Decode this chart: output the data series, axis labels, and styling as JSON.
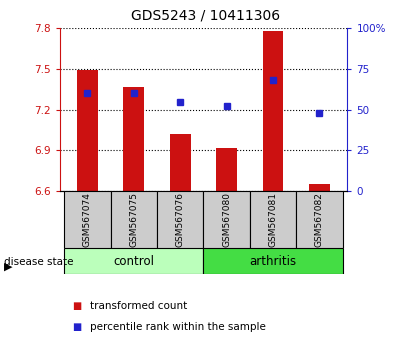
{
  "title": "GDS5243 / 10411306",
  "samples": [
    "GSM567074",
    "GSM567075",
    "GSM567076",
    "GSM567080",
    "GSM567081",
    "GSM567082"
  ],
  "bar_values": [
    7.49,
    7.37,
    7.02,
    6.92,
    7.78,
    6.65
  ],
  "bar_base": 6.6,
  "percentile_values": [
    60,
    60,
    55,
    52,
    68,
    48
  ],
  "ylim_left": [
    6.6,
    7.8
  ],
  "ylim_right": [
    0,
    100
  ],
  "yticks_left": [
    6.6,
    6.9,
    7.2,
    7.5,
    7.8
  ],
  "yticks_right": [
    0,
    25,
    50,
    75,
    100
  ],
  "bar_color": "#cc1111",
  "dot_color": "#2222cc",
  "control_color": "#bbffbb",
  "arthritis_color": "#44dd44",
  "group_label": "disease state",
  "legend_bar": "transformed count",
  "legend_dot": "percentile rank within the sample",
  "title_fontsize": 10,
  "tick_fontsize": 7.5,
  "label_fontsize": 8,
  "n_control": 3,
  "n_arthritis": 3,
  "bar_width": 0.45
}
